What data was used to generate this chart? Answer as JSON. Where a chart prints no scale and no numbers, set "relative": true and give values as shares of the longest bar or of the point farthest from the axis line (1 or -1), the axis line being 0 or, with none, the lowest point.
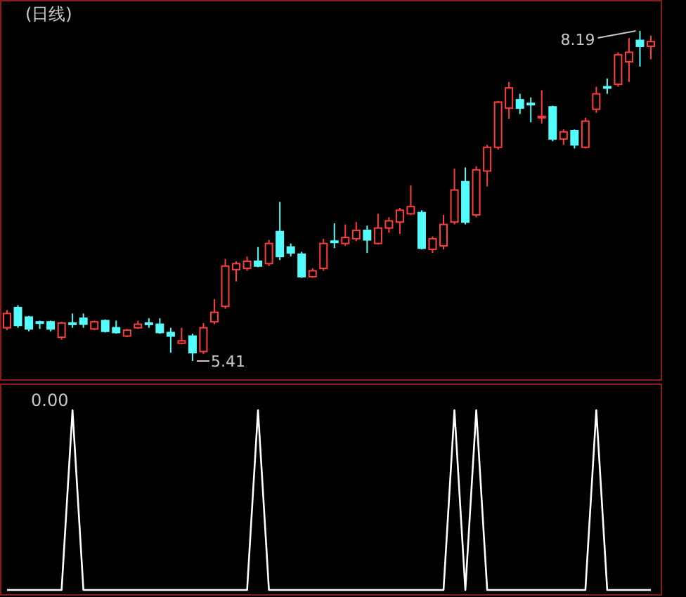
{
  "chart_data": [
    {
      "type": "candlestick",
      "title": "(日线)",
      "categories": [
        null,
        null,
        null,
        null,
        null,
        null,
        null,
        null,
        null,
        null,
        null,
        null,
        null,
        null,
        null,
        null,
        null,
        null,
        null,
        null,
        null,
        null,
        null,
        null,
        null,
        null,
        null,
        null,
        null,
        null,
        null,
        null,
        null,
        null,
        null,
        null,
        null,
        null,
        null,
        null,
        null,
        null,
        null,
        null,
        null,
        null,
        null,
        null,
        null,
        null,
        null,
        null,
        null,
        null,
        null,
        null,
        null,
        null,
        null,
        null
      ],
      "ohlc": [
        [
          5.69,
          5.84,
          5.67,
          5.81
        ],
        [
          5.86,
          5.88,
          5.69,
          5.71
        ],
        [
          5.78,
          5.79,
          5.66,
          5.68
        ],
        [
          5.74,
          5.75,
          5.68,
          5.73
        ],
        [
          5.74,
          5.75,
          5.66,
          5.68
        ],
        [
          5.61,
          5.74,
          5.59,
          5.73
        ],
        [
          5.73,
          5.81,
          5.69,
          5.72
        ],
        [
          5.77,
          5.81,
          5.69,
          5.72
        ],
        [
          5.68,
          5.75,
          5.67,
          5.74
        ],
        [
          5.75,
          5.76,
          5.65,
          5.66
        ],
        [
          5.69,
          5.75,
          5.64,
          5.65
        ],
        [
          5.62,
          5.68,
          5.61,
          5.67
        ],
        [
          5.69,
          5.75,
          5.68,
          5.72
        ],
        [
          5.73,
          5.77,
          5.69,
          5.72
        ],
        [
          5.72,
          5.77,
          5.64,
          5.65
        ],
        [
          5.65,
          5.69,
          5.48,
          5.62
        ],
        [
          5.56,
          5.69,
          5.55,
          5.58
        ],
        [
          5.62,
          5.64,
          5.41,
          5.48
        ],
        [
          5.49,
          5.73,
          5.47,
          5.69
        ],
        [
          5.74,
          5.93,
          5.72,
          5.82
        ],
        [
          5.87,
          6.27,
          5.85,
          6.21
        ],
        [
          6.18,
          6.25,
          6.08,
          6.23
        ],
        [
          6.19,
          6.29,
          6.17,
          6.25
        ],
        [
          6.25,
          6.37,
          6.2,
          6.21
        ],
        [
          6.23,
          6.43,
          6.21,
          6.4
        ],
        [
          6.5,
          6.75,
          6.26,
          6.29
        ],
        [
          6.37,
          6.4,
          6.29,
          6.32
        ],
        [
          6.31,
          6.33,
          6.11,
          6.12
        ],
        [
          6.12,
          6.19,
          6.11,
          6.17
        ],
        [
          6.19,
          6.44,
          6.17,
          6.4
        ],
        [
          6.42,
          6.57,
          6.36,
          6.41
        ],
        [
          6.4,
          6.56,
          6.38,
          6.45
        ],
        [
          6.44,
          6.58,
          6.42,
          6.51
        ],
        [
          6.51,
          6.55,
          6.32,
          6.43
        ],
        [
          6.4,
          6.65,
          6.39,
          6.53
        ],
        [
          6.53,
          6.62,
          6.49,
          6.59
        ],
        [
          6.58,
          6.7,
          6.48,
          6.68
        ],
        [
          6.65,
          6.89,
          6.64,
          6.71
        ],
        [
          6.66,
          6.68,
          6.35,
          6.36
        ],
        [
          6.35,
          6.46,
          6.32,
          6.44
        ],
        [
          6.38,
          6.64,
          6.35,
          6.56
        ],
        [
          6.58,
          7.03,
          6.56,
          6.85
        ],
        [
          6.92,
          7.04,
          6.56,
          6.58
        ],
        [
          6.64,
          7.05,
          6.62,
          7.02
        ],
        [
          7.01,
          7.23,
          6.88,
          7.21
        ],
        [
          7.21,
          7.6,
          7.19,
          7.59
        ],
        [
          7.54,
          7.76,
          7.45,
          7.71
        ],
        [
          7.61,
          7.66,
          7.49,
          7.54
        ],
        [
          7.58,
          7.63,
          7.42,
          7.57
        ],
        [
          7.46,
          7.69,
          7.41,
          7.47
        ],
        [
          7.55,
          7.56,
          7.26,
          7.28
        ],
        [
          7.28,
          7.36,
          7.23,
          7.34
        ],
        [
          7.35,
          7.36,
          7.2,
          7.23
        ],
        [
          7.21,
          7.46,
          7.2,
          7.43
        ],
        [
          7.53,
          7.72,
          7.5,
          7.66
        ],
        [
          7.72,
          7.79,
          7.66,
          7.71
        ],
        [
          7.74,
          8.01,
          7.72,
          7.99
        ],
        [
          7.93,
          8.13,
          7.76,
          8.01
        ],
        [
          8.11,
          8.19,
          7.89,
          8.06
        ],
        [
          8.06,
          8.15,
          7.95,
          8.1
        ]
      ],
      "colors": [
        "#ff3c3c",
        "#54fcfc",
        "#54fcfc",
        "#54fcfc",
        "#54fcfc",
        "#ff3c3c",
        "#54fcfc",
        "#54fcfc",
        "#ff3c3c",
        "#54fcfc",
        "#54fcfc",
        "#ff3c3c",
        "#ff3c3c",
        "#54fcfc",
        "#54fcfc",
        "#54fcfc",
        "#ff3c3c",
        "#54fcfc",
        "#ff3c3c",
        "#ff3c3c",
        "#ff3c3c",
        "#ff3c3c",
        "#ff3c3c",
        "#54fcfc",
        "#ff3c3c",
        "#54fcfc",
        "#54fcfc",
        "#54fcfc",
        "#ff3c3c",
        "#ff3c3c",
        "#54fcfc",
        "#ff3c3c",
        "#ff3c3c",
        "#54fcfc",
        "#ff3c3c",
        "#ff3c3c",
        "#ff3c3c",
        "#ff3c3c",
        "#54fcfc",
        "#ff3c3c",
        "#ff3c3c",
        "#ff3c3c",
        "#54fcfc",
        "#ff3c3c",
        "#ff3c3c",
        "#ff3c3c",
        "#ff3c3c",
        "#54fcfc",
        "#54fcfc",
        "#ff3c3c",
        "#54fcfc",
        "#ff3c3c",
        "#54fcfc",
        "#ff3c3c",
        "#ff3c3c",
        "#54fcfc",
        "#ff3c3c",
        "#ff3c3c",
        "#54fcfc",
        "#ff3c3c"
      ],
      "annotations": [
        "8.19",
        "5.41"
      ]
    },
    {
      "type": "line",
      "relative": true,
      "categories": [
        null,
        null,
        null,
        null,
        null,
        null,
        null,
        null,
        null,
        null,
        null,
        null,
        null,
        null,
        null,
        null,
        null,
        null,
        null,
        null,
        null,
        null,
        null,
        null,
        null,
        null,
        null,
        null,
        null,
        null,
        null,
        null,
        null,
        null,
        null,
        null,
        null,
        null,
        null,
        null,
        null,
        null,
        null,
        null,
        null,
        null,
        null,
        null,
        null,
        null,
        null,
        null,
        null,
        null,
        null,
        null,
        null,
        null,
        null,
        null
      ],
      "series": [
        {
          "color": "#ffffff",
          "values": [
            0,
            0,
            0,
            0,
            0,
            0,
            1,
            0,
            0,
            0,
            0,
            0,
            0,
            0,
            0,
            0,
            0,
            0,
            0,
            0,
            0,
            0,
            0,
            1,
            0,
            0,
            0,
            0,
            0,
            0,
            0,
            0,
            0,
            0,
            0,
            0,
            0,
            0,
            0,
            0,
            0,
            1,
            0,
            1,
            0,
            0,
            0,
            0,
            0,
            0,
            0,
            0,
            0,
            0,
            1,
            0,
            0,
            0,
            0,
            0
          ]
        }
      ],
      "annotations": [
        "0.00"
      ]
    }
  ]
}
